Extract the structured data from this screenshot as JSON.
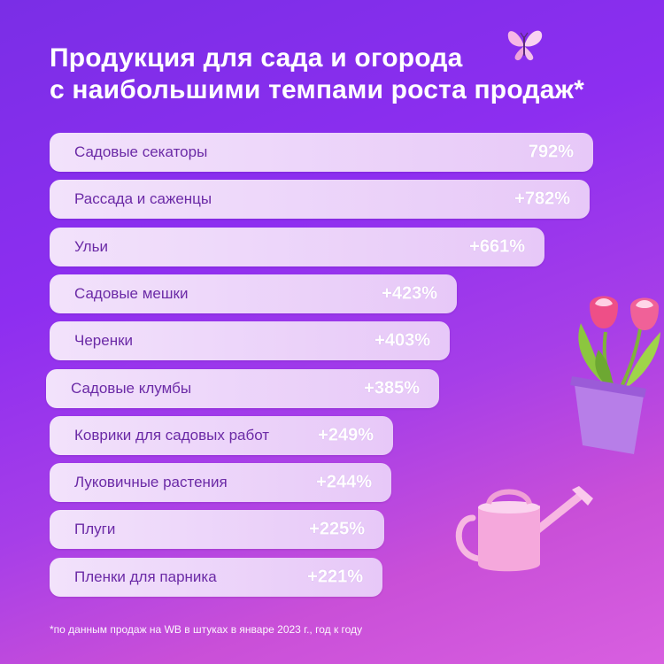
{
  "title": {
    "line1": "Продукция для сада и огорода",
    "line2": "с наибольшими темпами роста продаж*"
  },
  "footnote": "*по данным продаж на WB в штуках в январе 2023 г., год к году",
  "colors": {
    "background_top": "#7a2ee6",
    "background_bottom": "#d85fe0",
    "bar": "#f0dcfa",
    "label_text": "#6b2aa6",
    "value_text": "#ffffff"
  },
  "decorations": [
    "butterfly-icon",
    "flower-pot-icon",
    "watering-can-icon"
  ],
  "chart_data": {
    "type": "bar",
    "orientation": "horizontal",
    "categories": [
      "Садовые секаторы",
      "Рассада и саженцы",
      "Ульи",
      "Садовые мешки",
      "Черенки",
      "Садовые клумбы",
      "Коврики для садовых работ",
      "Луковичные растения",
      "Плуги",
      "Пленки для парника"
    ],
    "values": [
      792,
      782,
      661,
      423,
      403,
      385,
      249,
      244,
      225,
      221
    ],
    "value_labels": [
      "792%",
      "+782%",
      "+661%",
      "+423%",
      "+403%",
      "+385%",
      "+249%",
      "+244%",
      "+225%",
      "+221%"
    ],
    "title": "Продукция для сада и огорода с наибольшими темпами роста продаж*",
    "grid": false,
    "legend": "none"
  }
}
